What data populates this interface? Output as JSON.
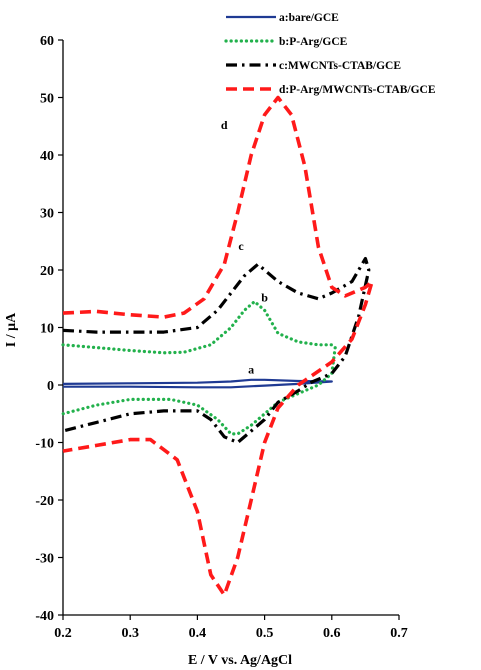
{
  "chart_data": {
    "type": "line",
    "title": "",
    "xlabel": "E / V vs. Ag/AgCl",
    "ylabel": "I / μA",
    "xlim": [
      0.2,
      0.7
    ],
    "ylim": [
      -40,
      60
    ],
    "x_ticks": [
      "0.2",
      "0.3",
      "0.4",
      "0.5",
      "0.6",
      "0.7"
    ],
    "y_ticks": [
      "-40",
      "-30",
      "-20",
      "-10",
      "0",
      "10",
      "20",
      "30",
      "40",
      "50",
      "60"
    ],
    "grid": false,
    "legend_position": "top-right",
    "series": [
      {
        "name": "a:bare/GCE",
        "label": "a",
        "label_at": [
          0.48,
          2
        ],
        "color": "#1f3a93",
        "dash": "solid",
        "points": [
          [
            0.2,
            0.2
          ],
          [
            0.3,
            0.3
          ],
          [
            0.4,
            0.4
          ],
          [
            0.45,
            0.6
          ],
          [
            0.48,
            0.9
          ],
          [
            0.5,
            0.9
          ],
          [
            0.55,
            0.7
          ],
          [
            0.6,
            0.6
          ],
          [
            0.6,
            0.6
          ],
          [
            0.55,
            0.2
          ],
          [
            0.5,
            -0.1
          ],
          [
            0.45,
            -0.4
          ],
          [
            0.4,
            -0.4
          ],
          [
            0.3,
            -0.3
          ],
          [
            0.2,
            -0.3
          ]
        ]
      },
      {
        "name": "b:P-Arg/GCE",
        "label": "b",
        "label_at": [
          0.5,
          14.5
        ],
        "color": "#22b14c",
        "dash": "dot",
        "points": [
          [
            0.2,
            7
          ],
          [
            0.25,
            6.5
          ],
          [
            0.3,
            6
          ],
          [
            0.35,
            5.6
          ],
          [
            0.38,
            5.7
          ],
          [
            0.42,
            7
          ],
          [
            0.45,
            10
          ],
          [
            0.47,
            13
          ],
          [
            0.485,
            14.5
          ],
          [
            0.5,
            13
          ],
          [
            0.52,
            9
          ],
          [
            0.55,
            7.5
          ],
          [
            0.58,
            7
          ],
          [
            0.6,
            7
          ],
          [
            0.605,
            6.5
          ],
          [
            0.6,
            2
          ],
          [
            0.58,
            0
          ],
          [
            0.55,
            -1.5
          ],
          [
            0.52,
            -3
          ],
          [
            0.5,
            -5
          ],
          [
            0.48,
            -7
          ],
          [
            0.46,
            -8.5
          ],
          [
            0.45,
            -8.5
          ],
          [
            0.43,
            -6
          ],
          [
            0.4,
            -3.5
          ],
          [
            0.36,
            -2.5
          ],
          [
            0.3,
            -2.5
          ],
          [
            0.25,
            -3.5
          ],
          [
            0.2,
            -5
          ]
        ]
      },
      {
        "name": "c:MWCNTs-CTAB/GCE",
        "label": "c",
        "label_at": [
          0.465,
          23.5
        ],
        "color": "#000000",
        "dash": "dashdot",
        "points": [
          [
            0.2,
            9.5
          ],
          [
            0.25,
            9.2
          ],
          [
            0.3,
            9.2
          ],
          [
            0.35,
            9.2
          ],
          [
            0.4,
            10
          ],
          [
            0.43,
            13
          ],
          [
            0.45,
            16
          ],
          [
            0.47,
            19
          ],
          [
            0.49,
            21
          ],
          [
            0.5,
            20
          ],
          [
            0.52,
            18
          ],
          [
            0.55,
            16
          ],
          [
            0.58,
            15
          ],
          [
            0.6,
            16
          ],
          [
            0.63,
            18
          ],
          [
            0.65,
            22
          ],
          [
            0.655,
            20
          ],
          [
            0.64,
            12
          ],
          [
            0.62,
            5
          ],
          [
            0.6,
            2
          ],
          [
            0.57,
            0.5
          ],
          [
            0.55,
            -1
          ],
          [
            0.52,
            -3
          ],
          [
            0.5,
            -6
          ],
          [
            0.48,
            -8
          ],
          [
            0.46,
            -10
          ],
          [
            0.44,
            -9
          ],
          [
            0.42,
            -6
          ],
          [
            0.4,
            -4.5
          ],
          [
            0.35,
            -4.5
          ],
          [
            0.3,
            -5
          ],
          [
            0.25,
            -6.5
          ],
          [
            0.2,
            -8
          ]
        ]
      },
      {
        "name": "d:P-Arg/MWCNTs-CTAB/GCE",
        "label": "d",
        "label_at": [
          0.44,
          44.5
        ],
        "color": "#ff1a1a",
        "dash": "dash",
        "points": [
          [
            0.2,
            12.5
          ],
          [
            0.25,
            12.8
          ],
          [
            0.3,
            12.2
          ],
          [
            0.35,
            11.8
          ],
          [
            0.38,
            12.5
          ],
          [
            0.41,
            15
          ],
          [
            0.44,
            21
          ],
          [
            0.46,
            30
          ],
          [
            0.48,
            40
          ],
          [
            0.5,
            47
          ],
          [
            0.52,
            50
          ],
          [
            0.54,
            47
          ],
          [
            0.56,
            38
          ],
          [
            0.58,
            24
          ],
          [
            0.6,
            17
          ],
          [
            0.62,
            15.5
          ],
          [
            0.65,
            17
          ],
          [
            0.66,
            18
          ],
          [
            0.66,
            18
          ],
          [
            0.65,
            14
          ],
          [
            0.63,
            8
          ],
          [
            0.6,
            4
          ],
          [
            0.55,
            0
          ],
          [
            0.52,
            -4
          ],
          [
            0.5,
            -10
          ],
          [
            0.48,
            -20
          ],
          [
            0.46,
            -30
          ],
          [
            0.44,
            -36.5
          ],
          [
            0.42,
            -33
          ],
          [
            0.4,
            -22
          ],
          [
            0.37,
            -13
          ],
          [
            0.33,
            -9.5
          ],
          [
            0.3,
            -9.5
          ],
          [
            0.25,
            -10.5
          ],
          [
            0.2,
            -11.5
          ]
        ]
      }
    ]
  }
}
